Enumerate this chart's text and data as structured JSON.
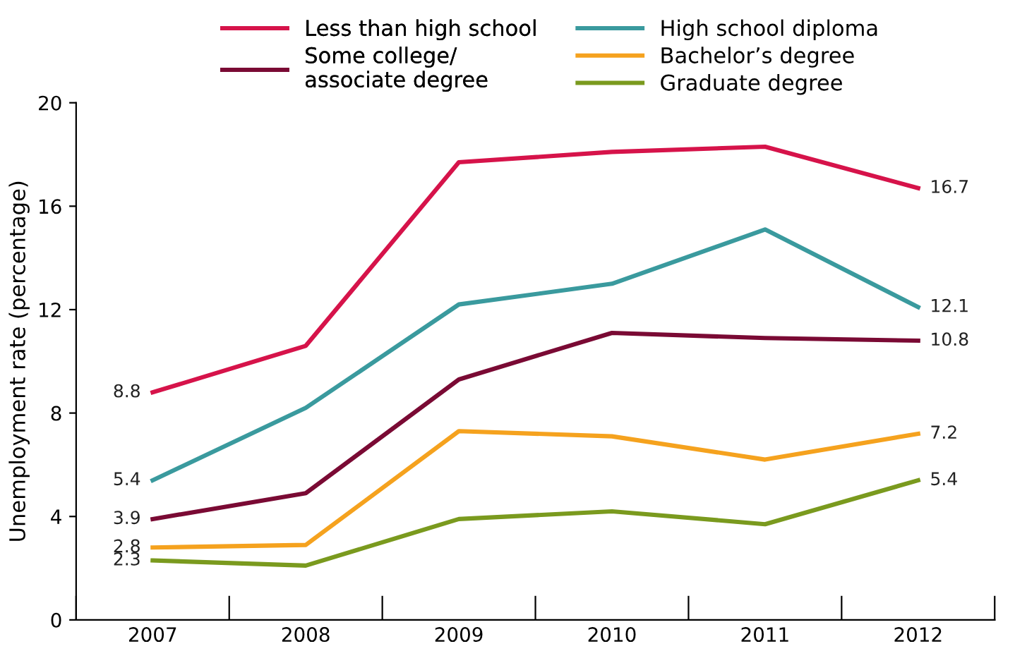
{
  "chart_data": {
    "type": "line",
    "ylabel": "Unemployment rate (percentage)",
    "categories": [
      "2007",
      "2008",
      "2009",
      "2010",
      "2011",
      "2012"
    ],
    "ylim": [
      0,
      20
    ],
    "yticks": [
      0,
      4,
      8,
      12,
      16,
      20
    ],
    "grid": false,
    "legend": "top",
    "marker": "none",
    "line_style": "solid",
    "series": [
      {
        "name": "Less than high school",
        "color": "#d6134a",
        "values": [
          8.8,
          10.6,
          17.7,
          18.1,
          18.3,
          16.7
        ],
        "value_labels": [
          "8.8",
          null,
          null,
          null,
          null,
          "16.7"
        ]
      },
      {
        "name": "High school diploma",
        "color": "#3a9a9e",
        "values": [
          5.4,
          8.2,
          12.2,
          13.0,
          15.1,
          12.1
        ],
        "value_labels": [
          "5.4",
          null,
          null,
          null,
          null,
          "12.1"
        ]
      },
      {
        "name": "Some college/\nassociate degree",
        "color": "#7a0a34",
        "values": [
          3.9,
          4.9,
          9.3,
          11.1,
          10.9,
          10.8
        ],
        "value_labels": [
          "3.9",
          null,
          null,
          null,
          null,
          "10.8"
        ]
      },
      {
        "name": "Bachelor’s degree",
        "color": "#f5a21e",
        "values": [
          2.8,
          2.9,
          7.3,
          7.1,
          6.2,
          7.2
        ],
        "value_labels": [
          "2.8",
          null,
          null,
          null,
          null,
          "7.2"
        ]
      },
      {
        "name": "Graduate degree",
        "color": "#7a9a1e",
        "values": [
          2.3,
          2.1,
          3.9,
          4.2,
          3.7,
          5.4
        ],
        "value_labels": [
          "2.3",
          null,
          null,
          null,
          null,
          "5.4"
        ]
      }
    ]
  }
}
